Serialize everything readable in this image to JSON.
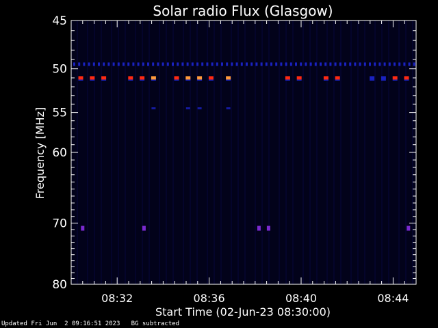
{
  "chart_data": {
    "type": "heatmap",
    "title": "Solar radio Flux (Glasgow)",
    "xlabel": "Start Time (02-Jun-23 08:30:00)",
    "ylabel": "Frequency [MHz]",
    "x_range": [
      "08:30:00",
      "08:45:00"
    ],
    "y_range": [
      45,
      80
    ],
    "y_scale": "log",
    "x_ticks": [
      "08:32",
      "08:36",
      "08:40",
      "08:44"
    ],
    "y_ticks": [
      45,
      50,
      55,
      60,
      70,
      80
    ],
    "colors": {
      "background": "#000000",
      "plot_background": "#02021a",
      "faint_column": "#08083a",
      "line_blue": "#1a22c0",
      "hot_red": "#ff2a10",
      "hot_orange": "#ff9a3a",
      "purple": "#7a2ad0"
    },
    "features": [
      {
        "name": "continuous emission band",
        "frequency_mhz": 49.5,
        "intensity": "low"
      },
      {
        "name": "intermittent bursts",
        "frequency_mhz": 51.0,
        "intensity": "high",
        "times": [
          "08:30:25",
          "08:30:55",
          "08:31:25",
          "08:32:35",
          "08:33:05",
          "08:33:35",
          "08:34:35",
          "08:35:05",
          "08:35:35",
          "08:36:05",
          "08:36:50",
          "08:39:25",
          "08:39:55",
          "08:41:05",
          "08:41:35",
          "08:43:05",
          "08:43:35",
          "08:44:05",
          "08:44:35"
        ],
        "strength": [
          0.8,
          0.8,
          0.8,
          0.8,
          0.8,
          1.0,
          0.8,
          1.0,
          1.0,
          0.8,
          1.0,
          0.8,
          0.8,
          0.8,
          0.8,
          0.3,
          0.3,
          0.8,
          0.8
        ]
      },
      {
        "name": "weak bursts",
        "frequency_mhz": 54.5,
        "intensity": "low",
        "times": [
          "08:33:35",
          "08:35:05",
          "08:35:35",
          "08:36:50"
        ]
      },
      {
        "name": "weak bursts",
        "frequency_mhz": 70.8,
        "intensity": "medium",
        "times": [
          "08:30:30",
          "08:33:10",
          "08:38:10",
          "08:38:35",
          "08:44:40"
        ]
      }
    ]
  },
  "footer": {
    "updated": "Updated Fri Jun  2 09:16:51 2023",
    "note": "BG subtracted"
  }
}
